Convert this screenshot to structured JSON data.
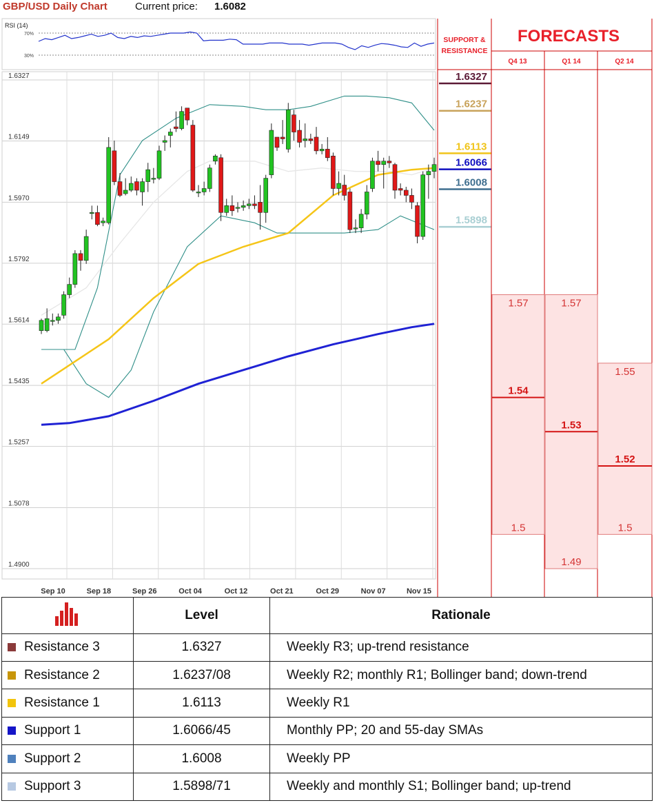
{
  "header": {
    "title": "GBP/USD Daily Chart",
    "price_label": "Current price:",
    "price": "1.6082"
  },
  "chart_data": {
    "type": "candlestick",
    "title": "GBP/USD Daily Chart",
    "y_ticks": [
      "1.6327",
      "1.6149",
      "1.5970",
      "1.5792",
      "1.5614",
      "1.5435",
      "1.5257",
      "1.5078",
      "1.4900"
    ],
    "ylim": [
      1.49,
      1.6327
    ],
    "x_ticks": [
      "Sep 10",
      "Sep 18",
      "Sep 26",
      "Oct 04",
      "Oct 12",
      "Oct 21",
      "Oct 29",
      "Nov 07",
      "Nov 15"
    ],
    "grid": true,
    "candles": [
      [
        1.5595,
        1.5625,
        1.5585,
        1.563
      ],
      [
        1.5595,
        1.563,
        1.559,
        1.566
      ],
      [
        1.5625,
        1.5625,
        1.561,
        1.5645
      ],
      [
        1.5625,
        1.5635,
        1.5615,
        1.5645
      ],
      [
        1.564,
        1.57,
        1.563,
        1.571
      ],
      [
        1.57,
        1.573,
        1.569,
        1.575
      ],
      [
        1.573,
        1.582,
        1.572,
        1.583
      ],
      [
        1.582,
        1.58,
        1.577,
        1.583
      ],
      [
        1.58,
        1.587,
        1.579,
        1.589
      ],
      [
        1.594,
        1.594,
        1.592,
        1.596
      ],
      [
        1.594,
        1.5905,
        1.59,
        1.596
      ],
      [
        1.591,
        1.5915,
        1.59,
        1.5925
      ],
      [
        1.591,
        1.613,
        1.5905,
        1.616
      ],
      [
        1.612,
        1.603,
        1.602,
        1.615
      ],
      [
        1.603,
        1.599,
        1.5985,
        1.6055
      ],
      [
        1.5995,
        1.6005,
        1.599,
        1.604
      ],
      [
        1.6005,
        1.6025,
        1.6,
        1.6045
      ],
      [
        1.603,
        1.6005,
        1.599,
        1.604
      ],
      [
        1.6,
        1.603,
        1.596,
        1.604
      ],
      [
        1.603,
        1.6065,
        1.6,
        1.6085
      ],
      [
        1.604,
        1.604,
        1.6025,
        1.607
      ],
      [
        1.604,
        1.612,
        1.6035,
        1.6135
      ],
      [
        1.6145,
        1.615,
        1.612,
        1.6165
      ],
      [
        1.6165,
        1.6175,
        1.613,
        1.6185
      ],
      [
        1.619,
        1.6185,
        1.6175,
        1.6235
      ],
      [
        1.6185,
        1.6235,
        1.618,
        1.625
      ],
      [
        1.6245,
        1.621,
        1.6195,
        1.624
      ],
      [
        1.6195,
        1.6005,
        1.6,
        1.621
      ],
      [
        1.6,
        1.6,
        1.5985,
        1.602
      ],
      [
        1.6,
        1.601,
        1.599,
        1.603
      ],
      [
        1.601,
        1.607,
        1.6,
        1.608
      ],
      [
        1.609,
        1.6105,
        1.608,
        1.611
      ],
      [
        1.61,
        1.594,
        1.5915,
        1.611
      ],
      [
        1.594,
        1.596,
        1.593,
        1.598
      ],
      [
        1.596,
        1.5945,
        1.593,
        1.599
      ],
      [
        1.5955,
        1.5955,
        1.594,
        1.597
      ],
      [
        1.5955,
        1.596,
        1.5945,
        1.5975
      ],
      [
        1.596,
        1.5965,
        1.595,
        1.598
      ],
      [
        1.5965,
        1.596,
        1.595,
        1.599
      ],
      [
        1.597,
        1.594,
        1.589,
        1.602
      ],
      [
        1.594,
        1.604,
        1.591,
        1.605
      ],
      [
        1.605,
        1.618,
        1.604,
        1.62
      ],
      [
        1.616,
        1.613,
        1.612,
        1.616
      ],
      [
        1.616,
        1.6155,
        1.614,
        1.621
      ],
      [
        1.6125,
        1.624,
        1.6115,
        1.626
      ],
      [
        1.6225,
        1.6175,
        1.615,
        1.624
      ],
      [
        1.618,
        1.6145,
        1.613,
        1.621
      ],
      [
        1.615,
        1.6155,
        1.613,
        1.62
      ],
      [
        1.6155,
        1.615,
        1.614,
        1.617
      ],
      [
        1.616,
        1.612,
        1.611,
        1.619
      ],
      [
        1.612,
        1.6125,
        1.611,
        1.614
      ],
      [
        1.6125,
        1.61,
        1.609,
        1.616
      ],
      [
        1.6105,
        1.601,
        1.599,
        1.6115
      ],
      [
        1.601,
        1.6025,
        1.599,
        1.606
      ],
      [
        1.602,
        1.599,
        1.5975,
        1.605
      ],
      [
        1.6,
        1.589,
        1.588,
        1.601
      ],
      [
        1.5895,
        1.5895,
        1.588,
        1.592
      ],
      [
        1.5895,
        1.5935,
        1.588,
        1.595
      ],
      [
        1.5935,
        1.6,
        1.592,
        1.602
      ],
      [
        1.601,
        1.609,
        1.6,
        1.61
      ],
      [
        1.609,
        1.608,
        1.606,
        1.612
      ],
      [
        1.608,
        1.609,
        1.601,
        1.61
      ],
      [
        1.609,
        1.6085,
        1.607,
        1.6105
      ],
      [
        1.608,
        1.6005,
        1.598,
        1.6085
      ],
      [
        1.601,
        1.6005,
        1.599,
        1.6025
      ],
      [
        1.6005,
        1.599,
        1.597,
        1.6015
      ],
      [
        1.599,
        1.597,
        1.595,
        1.601
      ],
      [
        1.596,
        1.587,
        1.585,
        1.597
      ],
      [
        1.587,
        1.605,
        1.586,
        1.606
      ],
      [
        1.605,
        1.606,
        1.598,
        1.608
      ],
      [
        1.606,
        1.608,
        1.604,
        1.61
      ]
    ],
    "sma_55": [
      [
        0,
        1.544
      ],
      [
        12,
        1.557
      ],
      [
        20,
        1.569
      ],
      [
        28,
        1.579
      ],
      [
        36,
        1.584
      ],
      [
        44,
        1.588
      ],
      [
        52,
        1.599
      ],
      [
        60,
        1.605
      ],
      [
        66,
        1.6065
      ],
      [
        70,
        1.607
      ]
    ],
    "sma_200": [
      [
        0,
        1.532
      ],
      [
        5,
        1.5325
      ],
      [
        12,
        1.5345
      ],
      [
        20,
        1.539
      ],
      [
        28,
        1.544
      ],
      [
        36,
        1.548
      ],
      [
        44,
        1.552
      ],
      [
        52,
        1.5555
      ],
      [
        60,
        1.5585
      ],
      [
        66,
        1.5605
      ],
      [
        70,
        1.5615
      ]
    ],
    "bollinger_upper": [
      [
        0,
        1.554
      ],
      [
        6,
        1.554
      ],
      [
        10,
        1.572
      ],
      [
        14,
        1.605
      ],
      [
        18,
        1.615
      ],
      [
        24,
        1.6215
      ],
      [
        30,
        1.6255
      ],
      [
        36,
        1.625
      ],
      [
        40,
        1.624
      ],
      [
        44,
        1.624
      ],
      [
        48,
        1.625
      ],
      [
        54,
        1.628
      ],
      [
        58,
        1.628
      ],
      [
        62,
        1.6275
      ],
      [
        66,
        1.626
      ],
      [
        70,
        1.618
      ]
    ],
    "bollinger_middle": [
      [
        0,
        1.564
      ],
      [
        8,
        1.572
      ],
      [
        14,
        1.585
      ],
      [
        20,
        1.597
      ],
      [
        26,
        1.606
      ],
      [
        30,
        1.609
      ],
      [
        38,
        1.609
      ],
      [
        44,
        1.606
      ],
      [
        50,
        1.607
      ],
      [
        56,
        1.606
      ],
      [
        62,
        1.606
      ],
      [
        66,
        1.605
      ],
      [
        70,
        1.607
      ]
    ],
    "bollinger_lower": [
      [
        0,
        1.554
      ],
      [
        4,
        1.554
      ],
      [
        8,
        1.544
      ],
      [
        12,
        1.54
      ],
      [
        16,
        1.548
      ],
      [
        20,
        1.565
      ],
      [
        26,
        1.584
      ],
      [
        32,
        1.593
      ],
      [
        38,
        1.591
      ],
      [
        42,
        1.588
      ],
      [
        48,
        1.588
      ],
      [
        54,
        1.588
      ],
      [
        60,
        1.589
      ],
      [
        64,
        1.593
      ],
      [
        70,
        1.589
      ]
    ],
    "levels": [
      {
        "label": "1.6327",
        "value": 1.6327,
        "color": "#5b1a36"
      },
      {
        "label": "1.6237",
        "value": 1.6237,
        "color": "#c8a25a"
      },
      {
        "label": "1.6113",
        "value": 1.6113,
        "color": "#f0c419"
      },
      {
        "label": "1.6066",
        "value": 1.6066,
        "color": "#1010c0"
      },
      {
        "label": "1.6008",
        "value": 1.6008,
        "color": "#3f6f8f"
      },
      {
        "label": "1.5898",
        "value": 1.5898,
        "color": "#a9cfd3"
      }
    ],
    "rsi": {
      "label": "RSI (14)",
      "levels": [
        "70%",
        "30%"
      ],
      "values": [
        55,
        60,
        58,
        62,
        66,
        60,
        62,
        65,
        68,
        64,
        66,
        70,
        62,
        60,
        64,
        62,
        65,
        64,
        66,
        68,
        70,
        70,
        70,
        72,
        70,
        56,
        57,
        57,
        57,
        59,
        58,
        50,
        50,
        50,
        50,
        52,
        52,
        52,
        50,
        50,
        50,
        48,
        50,
        52,
        52,
        52,
        50,
        44,
        40,
        47,
        44,
        48,
        51,
        50,
        48,
        45,
        44,
        52,
        46,
        50,
        52
      ]
    }
  },
  "side_panel": {
    "sr_title_1": "SUPPORT &",
    "sr_title_2": "RESISTANCE",
    "forecasts_title": "FORECASTS",
    "quarters": [
      "Q4 13",
      "Q1 14",
      "Q2 14"
    ]
  },
  "forecasts": [
    {
      "quarter": "Q4 13",
      "high": 1.57,
      "mid": 1.54,
      "low": 1.5,
      "high_label": "1.57",
      "mid_label": "1.54",
      "low_label": "1.5"
    },
    {
      "quarter": "Q1 14",
      "high": 1.57,
      "mid": 1.53,
      "low": 1.49,
      "high_label": "1.57",
      "mid_label": "1.53",
      "low_label": "1.49"
    },
    {
      "quarter": "Q2 14",
      "high": 1.55,
      "mid": 1.52,
      "low": 1.5,
      "high_label": "1.55",
      "mid_label": "1.52",
      "low_label": "1.5"
    }
  ],
  "level_table": {
    "header_level": "Level",
    "header_rationale": "Rationale",
    "rows": [
      {
        "name": "Resistance 3",
        "level": "1.6327",
        "rationale": "Weekly R3; up-trend resistance",
        "color": "#8b3a3a"
      },
      {
        "name": "Resistance 2",
        "level": "1.6237/08",
        "rationale": "Weekly R2; monthly R1; Bollinger band; down-trend",
        "color": "#c8960a"
      },
      {
        "name": "Resistance 1",
        "level": "1.6113",
        "rationale": "Weekly R1",
        "color": "#f2c40c"
      },
      {
        "name": "Support 1",
        "level": "1.6066/45",
        "rationale": "Monthly PP; 20 and 55-day SMAs",
        "color": "#1515c8"
      },
      {
        "name": "Support 2",
        "level": "1.6008",
        "rationale": "Weekly PP",
        "color": "#4f81bd"
      },
      {
        "name": "Support 3",
        "level": "1.5898/71",
        "rationale": "Weekly and monthly S1; Bollinger band; up-trend",
        "color": "#b7c9e2"
      }
    ]
  }
}
